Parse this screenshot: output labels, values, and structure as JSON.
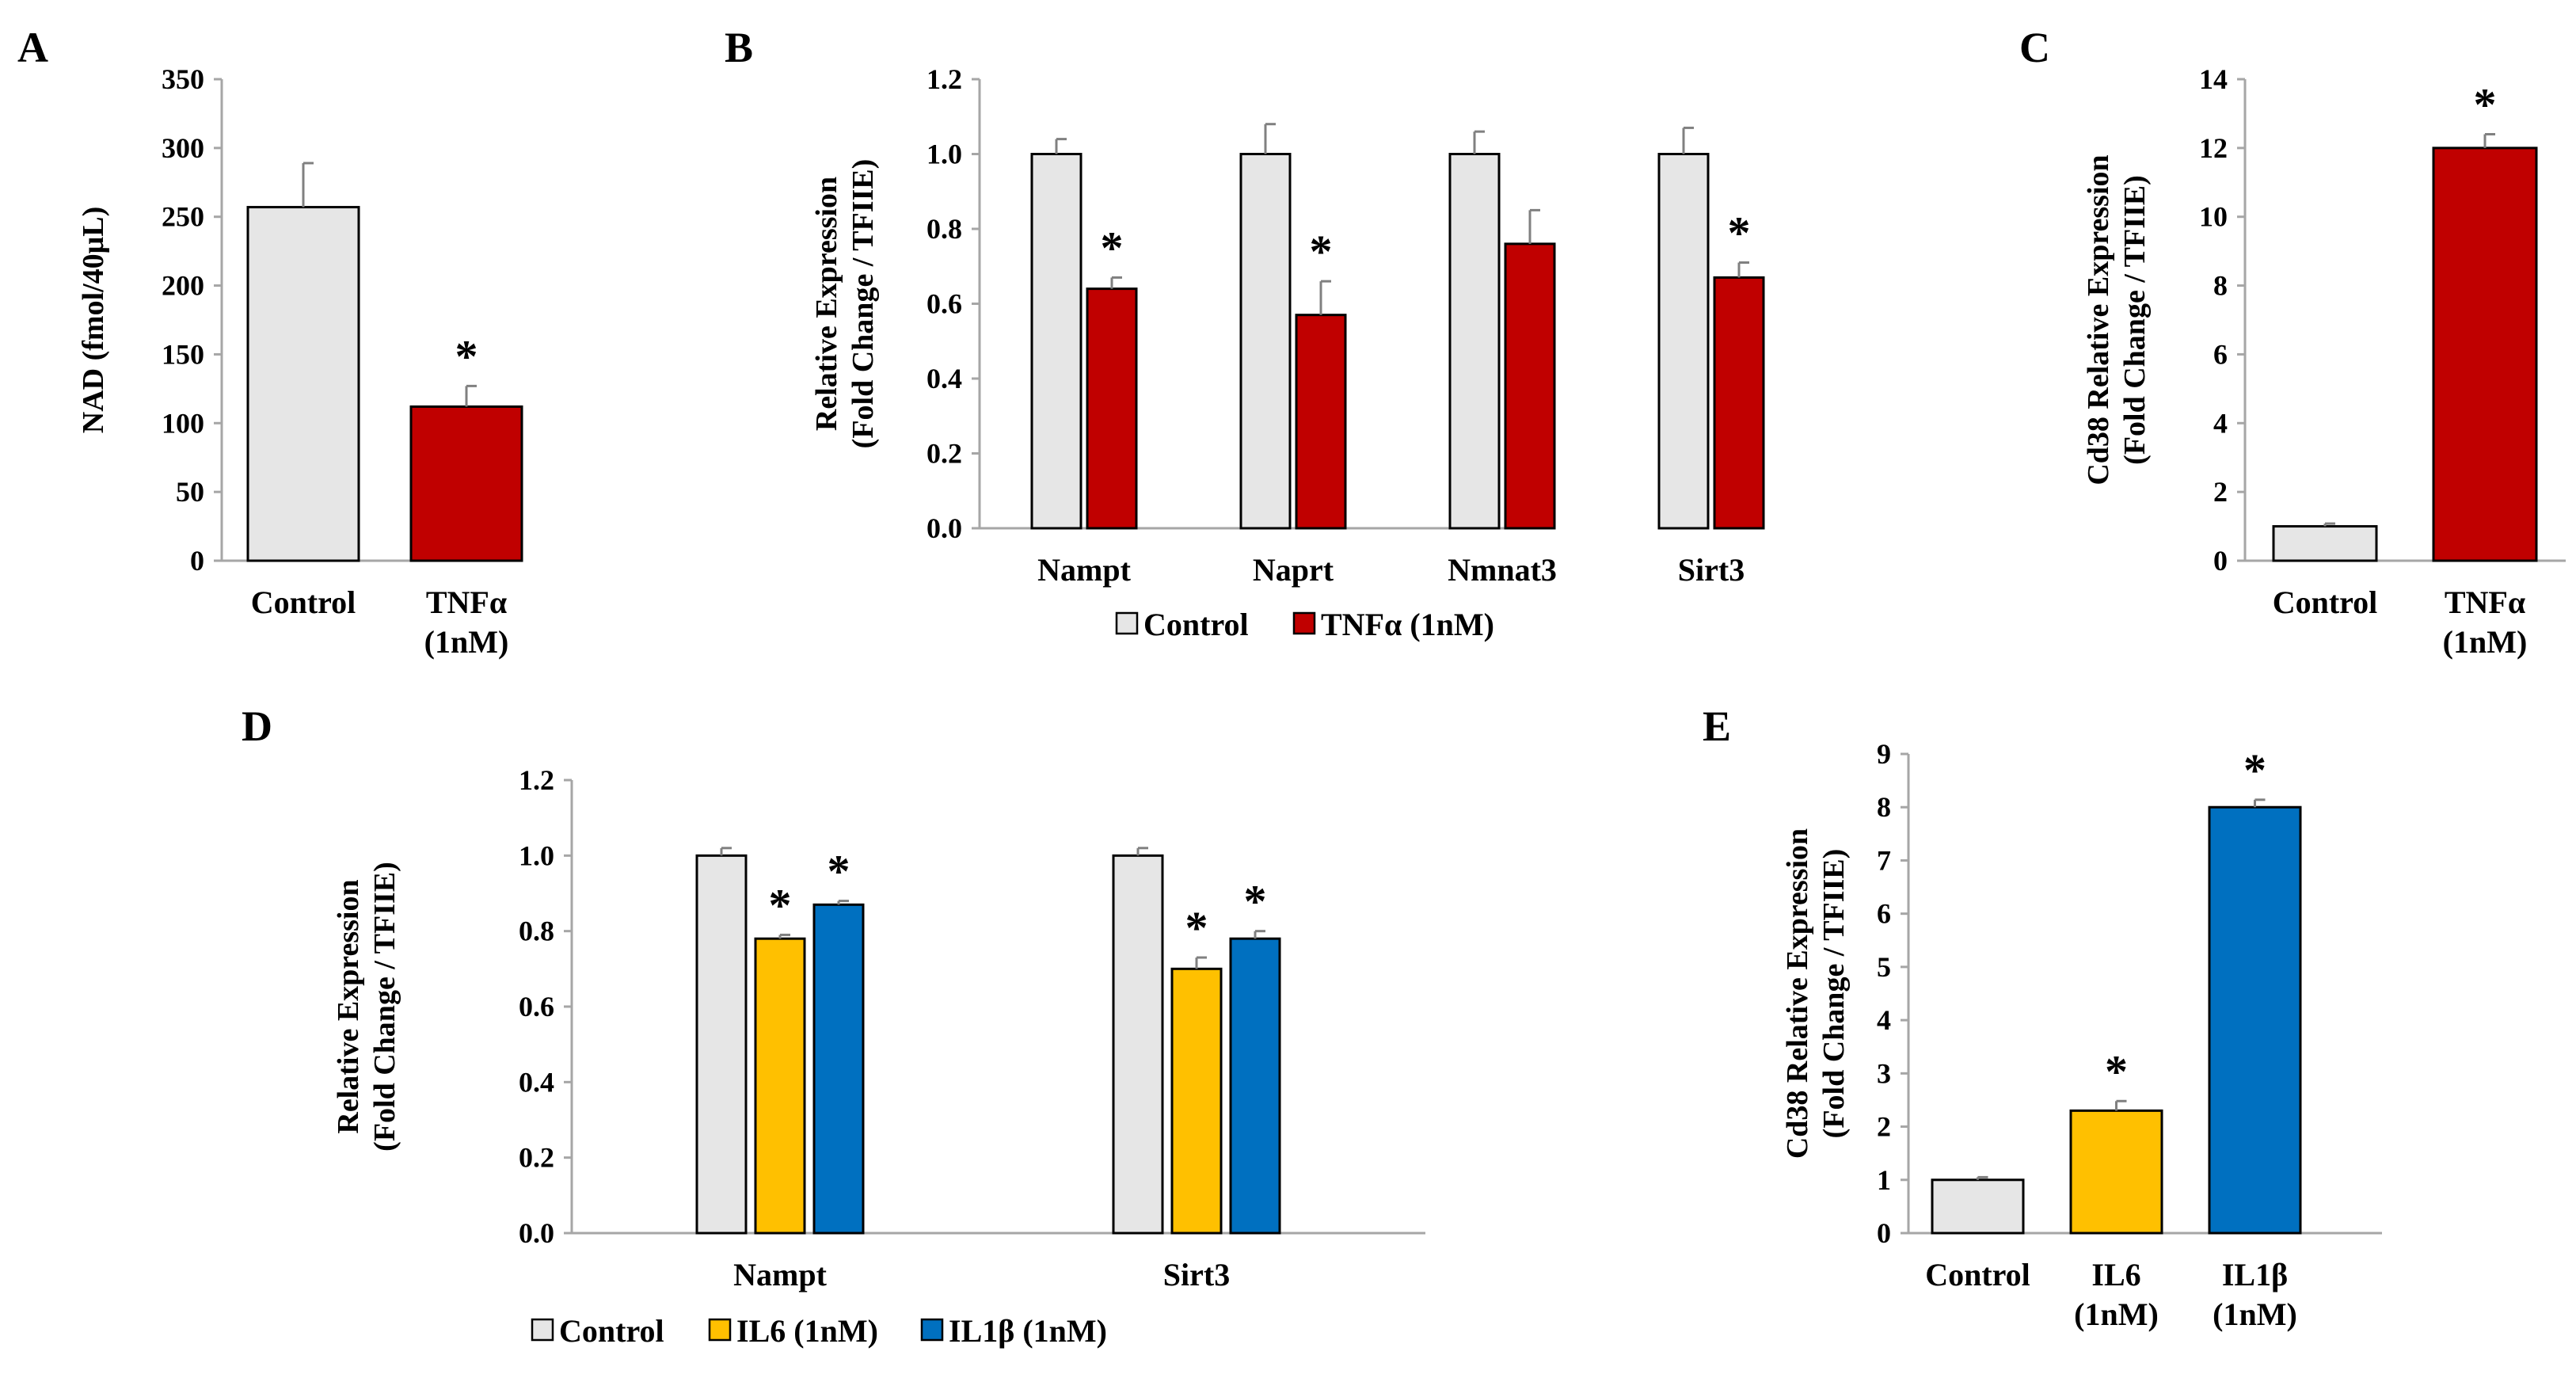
{
  "colors": {
    "control": "#e6e6e6",
    "tnf": "#c00000",
    "il6": "#ffc000",
    "il1b": "#0070c0",
    "axis": "#a6a6a6",
    "error": "#808080"
  },
  "chart_data": [
    {
      "id": "A",
      "panel_label": "A",
      "type": "bar",
      "ylabel_lines": [
        "NAD (fmol/40μL)"
      ],
      "categories": [
        [
          "Control"
        ],
        [
          "TNFα",
          "(1nM)"
        ]
      ],
      "ylim": [
        0,
        350
      ],
      "yticks": [
        0,
        50,
        100,
        150,
        200,
        250,
        300,
        350
      ],
      "tick_format": "int",
      "series": [
        {
          "name": "Control",
          "color_key": "control",
          "values": [
            257,
            null
          ],
          "errors": [
            32,
            null
          ],
          "sig": [
            false,
            false
          ]
        },
        {
          "name": "TNFα (1nM)",
          "color_key": "tnf",
          "values": [
            null,
            112
          ],
          "errors": [
            null,
            15
          ],
          "sig": [
            false,
            true
          ]
        }
      ],
      "star": "*",
      "legend": []
    },
    {
      "id": "B",
      "panel_label": "B",
      "type": "bar",
      "ylabel_lines": [
        "Relative Expression",
        "(Fold Change / TFIIE)"
      ],
      "categories": [
        [
          "Nampt"
        ],
        [
          "Naprt"
        ],
        [
          "Nmnat3"
        ],
        [
          "Sirt3"
        ]
      ],
      "ylim": [
        0,
        1.2
      ],
      "yticks": [
        0,
        0.2,
        0.4,
        0.6,
        0.8,
        1.0,
        1.2
      ],
      "tick_format": "1dp",
      "series": [
        {
          "name": "Control",
          "color_key": "control",
          "values": [
            1.0,
            1.0,
            1.0,
            1.0
          ],
          "errors": [
            0.04,
            0.08,
            0.06,
            0.07
          ],
          "sig": [
            false,
            false,
            false,
            false
          ]
        },
        {
          "name": "TNFα (1nM)",
          "color_key": "tnf",
          "values": [
            0.64,
            0.57,
            0.76,
            0.67
          ],
          "errors": [
            0.03,
            0.09,
            0.09,
            0.04
          ],
          "sig": [
            true,
            true,
            false,
            true
          ]
        }
      ],
      "star": "*",
      "legend": [
        {
          "label": "Control",
          "color_key": "control"
        },
        {
          "label": "TNFα (1nM)",
          "color_key": "tnf"
        }
      ]
    },
    {
      "id": "C",
      "panel_label": "C",
      "type": "bar",
      "ylabel_lines": [
        "Cd38 Relative Expression",
        "(Fold Change / TFIIE)"
      ],
      "categories": [
        [
          "Control"
        ],
        [
          "TNFα",
          "(1nM)"
        ]
      ],
      "ylim": [
        0,
        14
      ],
      "yticks": [
        0,
        2,
        4,
        6,
        8,
        10,
        12,
        14
      ],
      "tick_format": "int",
      "series": [
        {
          "name": "Control",
          "color_key": "control",
          "values": [
            1.0,
            null
          ],
          "errors": [
            0.08,
            null
          ],
          "sig": [
            false,
            false
          ]
        },
        {
          "name": "TNFα (1nM)",
          "color_key": "tnf",
          "values": [
            null,
            12.0
          ],
          "errors": [
            null,
            0.4
          ],
          "sig": [
            false,
            true
          ]
        }
      ],
      "star": "*",
      "legend": []
    },
    {
      "id": "D",
      "panel_label": "D",
      "type": "bar",
      "ylabel_lines": [
        "Relative Expression",
        "(Fold Change / TFIIE)"
      ],
      "categories": [
        [
          "Nampt"
        ],
        [
          "Sirt3"
        ]
      ],
      "ylim": [
        0,
        1.2
      ],
      "yticks": [
        0,
        0.2,
        0.4,
        0.6,
        0.8,
        1.0,
        1.2
      ],
      "tick_format": "1dp",
      "series": [
        {
          "name": "Control",
          "color_key": "control",
          "values": [
            1.0,
            1.0
          ],
          "errors": [
            0.02,
            0.02
          ],
          "sig": [
            false,
            false
          ]
        },
        {
          "name": "IL6 (1nM)",
          "color_key": "il6",
          "values": [
            0.78,
            0.7
          ],
          "errors": [
            0.01,
            0.03
          ],
          "sig": [
            true,
            true
          ]
        },
        {
          "name": "IL1β (1nM)",
          "color_key": "il1b",
          "values": [
            0.87,
            0.78
          ],
          "errors": [
            0.01,
            0.02
          ],
          "sig": [
            true,
            true
          ]
        }
      ],
      "star": "*",
      "legend": [
        {
          "label": "Control",
          "color_key": "control"
        },
        {
          "label": "IL6 (1nM)",
          "color_key": "il6"
        },
        {
          "label": "IL1β (1nM)",
          "color_key": "il1b"
        }
      ]
    },
    {
      "id": "E",
      "panel_label": "E",
      "type": "bar",
      "ylabel_lines": [
        "Cd38 Relative Expression",
        "(Fold Change / TFIIE)"
      ],
      "categories": [
        [
          "Control"
        ],
        [
          "IL6",
          "(1nM)"
        ],
        [
          "IL1β",
          "(1nM)"
        ]
      ],
      "ylim": [
        0,
        9
      ],
      "yticks": [
        0,
        1,
        2,
        3,
        4,
        5,
        6,
        7,
        8,
        9
      ],
      "tick_format": "int",
      "series": [
        {
          "name": "Control",
          "color_key": "control",
          "values": [
            1.0,
            null,
            null
          ],
          "errors": [
            0.05,
            null,
            null
          ],
          "sig": [
            false,
            false,
            false
          ]
        },
        {
          "name": "IL6 (1nM)",
          "color_key": "il6",
          "values": [
            null,
            2.3,
            null
          ],
          "errors": [
            null,
            0.18,
            null
          ],
          "sig": [
            false,
            true,
            false
          ]
        },
        {
          "name": "IL1β (1nM)",
          "color_key": "il1b",
          "values": [
            null,
            null,
            8.0
          ],
          "errors": [
            null,
            null,
            0.14
          ],
          "sig": [
            false,
            false,
            true
          ]
        }
      ],
      "star": "*",
      "legend": []
    }
  ]
}
